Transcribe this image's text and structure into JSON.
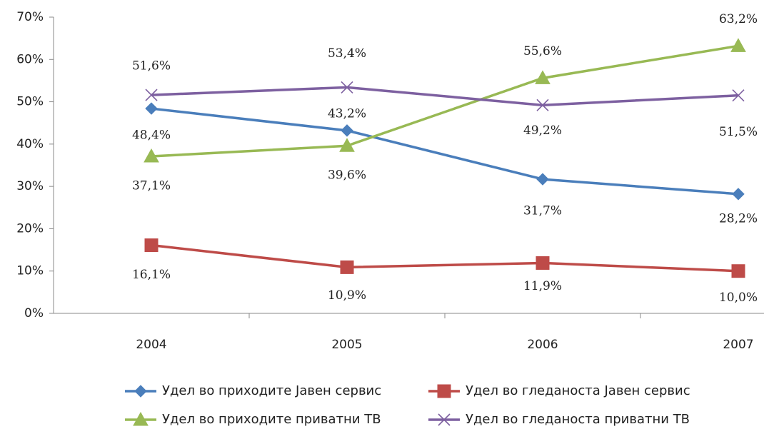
{
  "chart_data": {
    "type": "line",
    "categories": [
      "2004",
      "2005",
      "2006",
      "2007"
    ],
    "ylim": [
      0,
      70
    ],
    "yticks": [
      {
        "value": 0,
        "label": "0%"
      },
      {
        "value": 10,
        "label": "10%"
      },
      {
        "value": 20,
        "label": "20%"
      },
      {
        "value": 30,
        "label": "30%"
      },
      {
        "value": 40,
        "label": "40%"
      },
      {
        "value": 50,
        "label": "50%"
      },
      {
        "value": 60,
        "label": "60%"
      },
      {
        "value": 70,
        "label": "70%"
      }
    ],
    "series": [
      {
        "name": "Удел во приходите Јавен сервис",
        "color": "#4a7ebb",
        "marker": "diamond",
        "values": [
          48.4,
          43.2,
          31.7,
          28.2
        ],
        "value_labels": [
          "48,4%",
          "43,2%",
          "31,7%",
          "28,2%"
        ]
      },
      {
        "name": "Удел во гледаноста Јавен сервис",
        "color": "#be4b48",
        "marker": "square",
        "values": [
          16.1,
          10.9,
          11.9,
          10.0
        ],
        "value_labels": [
          "16,1%",
          "10,9%",
          "11,9%",
          "10,0%"
        ]
      },
      {
        "name": "Удел во приходите приватни ТВ",
        "color": "#98b954",
        "marker": "triangle",
        "values": [
          37.1,
          39.6,
          55.6,
          63.2
        ],
        "value_labels": [
          "37,1%",
          "39,6%",
          "55,6%",
          "63,2%"
        ]
      },
      {
        "name": "Удел во гледаноста приватни ТВ",
        "color": "#7d60a0",
        "marker": "x",
        "values": [
          51.6,
          53.4,
          49.2,
          51.5
        ],
        "value_labels": [
          "51,6%",
          "53,4%",
          "49,2%",
          "51,5%"
        ]
      }
    ]
  }
}
